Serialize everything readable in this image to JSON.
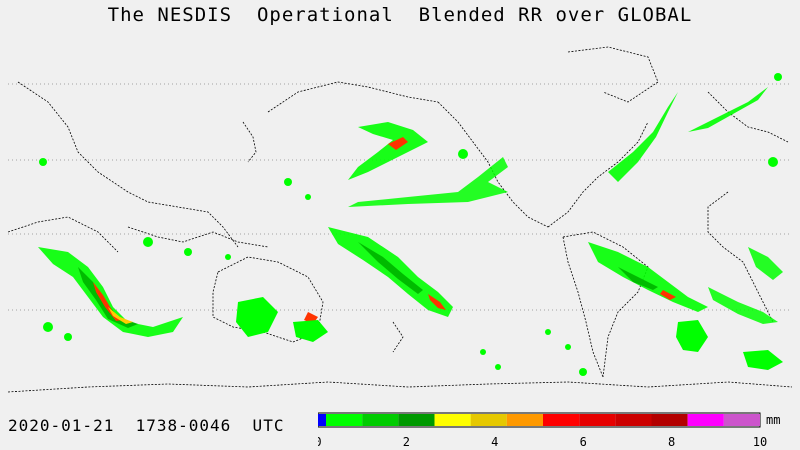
{
  "title": "The NESDIS  Operational  Blended RR over GLOBAL",
  "timestamp": "2020-01-21  1738-0046  UTC",
  "colorbar": {
    "unit": "mm",
    "tick_labels": [
      "0",
      "2",
      "4",
      "6",
      "8",
      "10"
    ],
    "colors": [
      "#0000ff",
      "#00ff00",
      "#00cc00",
      "#009900",
      "#ffff00",
      "#e6c800",
      "#ff9900",
      "#ff0000",
      "#e60000",
      "#cc0000",
      "#b30000",
      "#ff00ff",
      "#cc55cc"
    ]
  },
  "colors": {
    "background": "#f0f0f0",
    "coastline": "#000000",
    "rain_light": "#00ff00",
    "rain_medium": "#00bb00",
    "rain_heavy": "#ff3300",
    "rain_moderate": "#ffcc00"
  }
}
